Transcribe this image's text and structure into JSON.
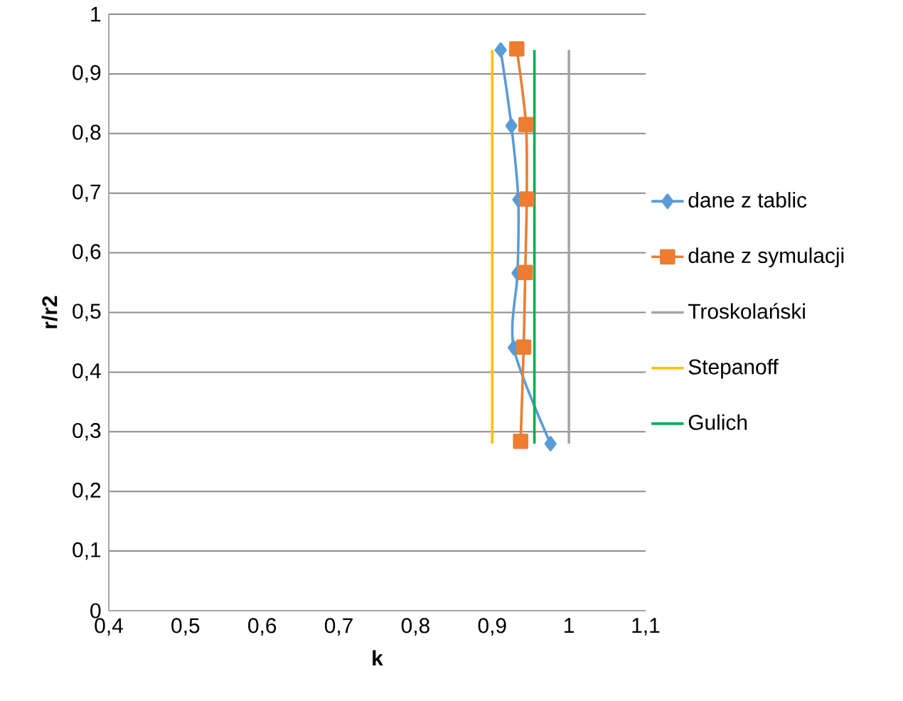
{
  "chart_data": {
    "type": "line",
    "xlabel": "k",
    "ylabel": "r/r2",
    "xlim": [
      0.4,
      1.1
    ],
    "ylim": [
      0,
      1
    ],
    "xticks": [
      {
        "value": 0.4,
        "label": "0,4"
      },
      {
        "value": 0.5,
        "label": "0,5"
      },
      {
        "value": 0.6,
        "label": "0,6"
      },
      {
        "value": 0.7,
        "label": "0,7"
      },
      {
        "value": 0.8,
        "label": "0,8"
      },
      {
        "value": 0.9,
        "label": "0,9"
      },
      1,
      {
        "value": 1.1,
        "label": "1,1"
      }
    ],
    "yticks": [
      0,
      {
        "value": 0.1,
        "label": "0,1"
      },
      {
        "value": 0.2,
        "label": "0,2"
      },
      {
        "value": 0.3,
        "label": "0,3"
      },
      {
        "value": 0.4,
        "label": "0,4"
      },
      {
        "value": 0.5,
        "label": "0,5"
      },
      {
        "value": 0.6,
        "label": "0,6"
      },
      {
        "value": 0.7,
        "label": "0,7"
      },
      {
        "value": 0.8,
        "label": "0,8"
      },
      {
        "value": 0.9,
        "label": "0,9"
      },
      1
    ],
    "grid": "y",
    "legend": "right",
    "line_style": "solid",
    "series": [
      {
        "name": "dane z tablic",
        "color": "#5b9bd5",
        "marker": "diamond",
        "x": [
          0.911,
          0.925,
          0.934,
          0.933,
          0.928,
          0.976
        ],
        "values": [
          0.94,
          0.813,
          0.689,
          0.566,
          0.441,
          0.28
        ]
      },
      {
        "name": "dane z symulacji",
        "color": "#ed7d31",
        "marker": "square",
        "x": [
          0.932,
          0.944,
          0.945,
          0.943,
          0.941,
          0.937
        ],
        "values": [
          0.942,
          0.815,
          0.69,
          0.567,
          0.442,
          0.284
        ]
      },
      {
        "name": "Troskolański",
        "color": "#a5a5a5",
        "marker": "none",
        "x": [
          1.0,
          1.0
        ],
        "values": [
          0.28,
          0.94
        ]
      },
      {
        "name": "Stepanoff",
        "color": "#ffc000",
        "marker": "none",
        "x": [
          0.9,
          0.9
        ],
        "values": [
          0.28,
          0.94
        ]
      },
      {
        "name": "Gulich",
        "color": "#00b050",
        "marker": "none",
        "x": [
          0.955,
          0.955
        ],
        "values": [
          0.28,
          0.94
        ]
      }
    ]
  }
}
